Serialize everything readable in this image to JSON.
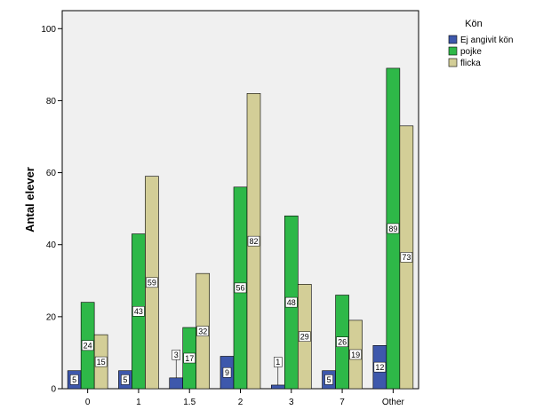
{
  "chart_data": {
    "type": "bar",
    "title": "",
    "xlabel": "",
    "ylabel": "Antal elever",
    "ylim": [
      0,
      105
    ],
    "yticks": [
      0,
      20,
      40,
      60,
      80,
      100
    ],
    "categories": [
      "0",
      "1",
      "1.5",
      "2",
      "3",
      "7",
      "Other"
    ],
    "legend_title": "Kön",
    "legend_position": "right",
    "grid": false,
    "series": [
      {
        "name": "Ej angivit kön",
        "color": "#3e58ac",
        "values": [
          5,
          5,
          3,
          9,
          1,
          5,
          12
        ]
      },
      {
        "name": "pojke",
        "color": "#2eb848",
        "values": [
          24,
          43,
          17,
          56,
          48,
          26,
          89
        ]
      },
      {
        "name": "flicka",
        "color": "#d3ce97",
        "values": [
          15,
          59,
          32,
          82,
          29,
          19,
          73
        ]
      }
    ]
  }
}
